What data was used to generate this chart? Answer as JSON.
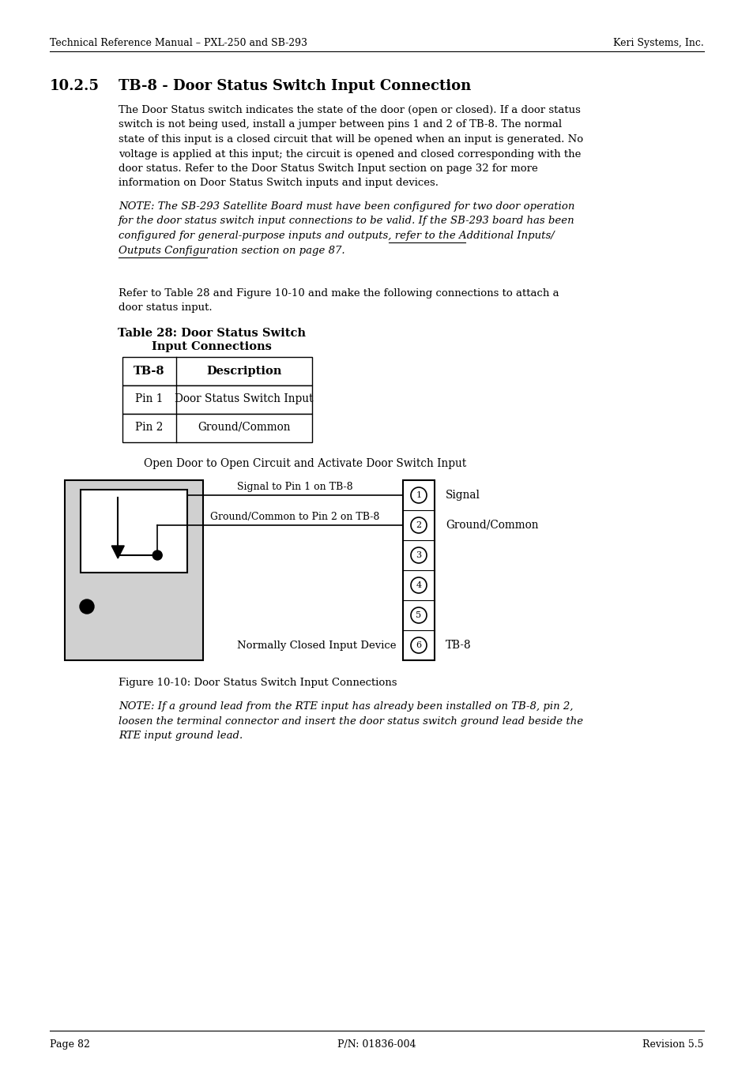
{
  "page_header_left": "Technical Reference Manual – PXL-250 and SB-293",
  "page_header_right": "Keri Systems, Inc.",
  "section_number": "10.2.5",
  "section_title": "TB-8 - Door Status Switch Input Connection",
  "body1_lines": [
    "The Door Status switch indicates the state of the door (open or closed). If a door status",
    "switch is not being used, install a jumper between pins 1 and 2 of TB-8. The normal",
    "state of this input is a closed circuit that will be opened when an input is generated. No",
    "voltage is applied at this input; the circuit is opened and closed corresponding with the",
    "door status. Refer to the Door Status Switch Input section on page 32 for more",
    "information on Door Status Switch inputs and input devices."
  ],
  "note1_lines": [
    "NOTE: The SB-293 Satellite Board must have been configured for two door operation",
    "for the door status switch input connections to be valid. If the SB-293 board has been",
    "configured for general-purpose inputs and outputs, refer to the Additional Inputs/",
    "Outputs Configuration section on page 87."
  ],
  "body2_lines": [
    "Refer to Table 28 and Figure 10-10 and make the following connections to attach a",
    "door status input."
  ],
  "table_title_line1": "Table 28: Door Status Switch",
  "table_title_line2": "Input Connections",
  "diagram_caption_top": "Open Door to Open Circuit and Activate Door Switch Input",
  "diagram_label_1": "Signal to Pin 1 on TB-8",
  "diagram_label_2": "Ground/Common to Pin 2 on TB-8",
  "diagram_label_nc": "Normally Closed Input Device",
  "diagram_label_signal": "Signal",
  "diagram_label_ground": "Ground/Common",
  "diagram_label_tb8": "TB-8",
  "figure_caption": "Figure 10-10: Door Status Switch Input Connections",
  "note2_lines": [
    "NOTE: If a ground lead from the RTE input has already been installed on TB-8, pin 2,",
    "loosen the terminal connector and insert the door status switch ground lead beside the",
    "RTE input ground lead."
  ],
  "page_footer_left": "Page 82",
  "page_footer_center": "P/N: 01836-004",
  "page_footer_right": "Revision 5.5",
  "bg_color": "#ffffff",
  "text_color": "#000000"
}
